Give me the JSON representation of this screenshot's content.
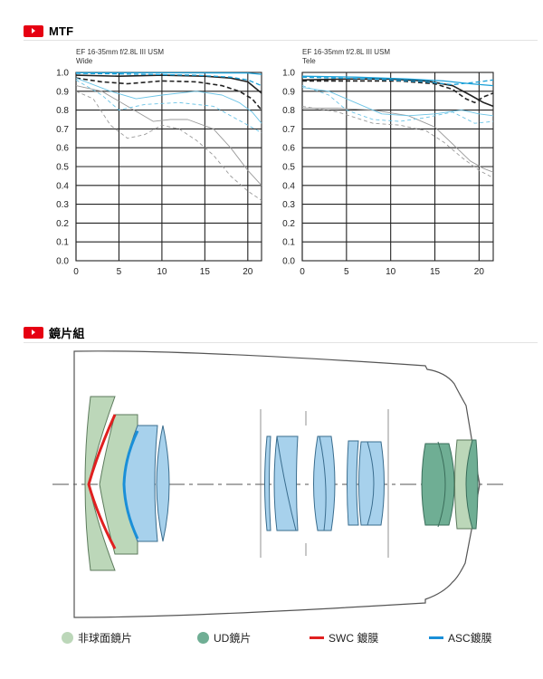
{
  "sections": {
    "mtf_title": "MTF",
    "elements_title": "鏡片組"
  },
  "colors": {
    "accent_red": "#e60012",
    "mtf_black": "#222222",
    "mtf_blue": "#1aa0d8",
    "mtf_gray": "#9a9a9a",
    "mtf_light_blue": "#6cc4e6",
    "aspherical_fill": "#bcd7b9",
    "ud_fill": "#6fae94",
    "normal_fill": "#a7d1ec",
    "swc": "#e02020",
    "asc": "#1a8fd8"
  },
  "chart_data": [
    {
      "type": "line",
      "title": "EF 16-35mm f/2.8L III USM",
      "subtitle": "Wide",
      "xlim": [
        0,
        21.6
      ],
      "ylim": [
        0,
        1.0
      ],
      "x_ticks": [
        "0",
        "5",
        "10",
        "15",
        "20"
      ],
      "y_ticks": [
        "0.0",
        "0.1",
        "0.2",
        "0.3",
        "0.4",
        "0.5",
        "0.6",
        "0.7",
        "0.8",
        "0.9",
        "1.0"
      ],
      "grid": true,
      "series": [
        {
          "style": "black-solid",
          "points": [
            [
              0,
              0.985
            ],
            [
              5,
              0.98
            ],
            [
              10,
              0.985
            ],
            [
              15,
              0.98
            ],
            [
              18,
              0.97
            ],
            [
              20,
              0.95
            ],
            [
              21.6,
              0.89
            ]
          ]
        },
        {
          "style": "black-dashed",
          "points": [
            [
              0,
              0.97
            ],
            [
              3,
              0.95
            ],
            [
              6,
              0.94
            ],
            [
              10,
              0.955
            ],
            [
              14,
              0.95
            ],
            [
              17,
              0.93
            ],
            [
              19,
              0.9
            ],
            [
              20.5,
              0.86
            ],
            [
              21.6,
              0.8
            ]
          ]
        },
        {
          "style": "blue-solid",
          "points": [
            [
              0,
              0.998
            ],
            [
              10,
              0.998
            ],
            [
              20,
              0.997
            ],
            [
              21.6,
              0.99
            ]
          ]
        },
        {
          "style": "blue-dashed",
          "points": [
            [
              0,
              0.995
            ],
            [
              8,
              0.99
            ],
            [
              14,
              0.985
            ],
            [
              18,
              0.975
            ],
            [
              20,
              0.96
            ],
            [
              21.6,
              0.93
            ]
          ]
        },
        {
          "style": "gray-solid",
          "points": [
            [
              0,
              0.93
            ],
            [
              3,
              0.9
            ],
            [
              6,
              0.82
            ],
            [
              9,
              0.74
            ],
            [
              11,
              0.75
            ],
            [
              13,
              0.75
            ],
            [
              16,
              0.7
            ],
            [
              18,
              0.6
            ],
            [
              20,
              0.48
            ],
            [
              21.6,
              0.4
            ]
          ]
        },
        {
          "style": "gray-dashed",
          "points": [
            [
              0,
              0.9
            ],
            [
              2,
              0.86
            ],
            [
              4,
              0.72
            ],
            [
              6,
              0.65
            ],
            [
              8,
              0.67
            ],
            [
              10,
              0.72
            ],
            [
              12,
              0.7
            ],
            [
              14,
              0.64
            ],
            [
              16,
              0.56
            ],
            [
              18,
              0.45
            ],
            [
              20,
              0.37
            ],
            [
              21.6,
              0.32
            ]
          ]
        },
        {
          "style": "lightblue-solid",
          "points": [
            [
              0,
              0.97
            ],
            [
              4,
              0.9
            ],
            [
              7,
              0.86
            ],
            [
              10,
              0.88
            ],
            [
              14,
              0.9
            ],
            [
              17,
              0.88
            ],
            [
              19,
              0.84
            ],
            [
              20.5,
              0.79
            ],
            [
              21.6,
              0.73
            ]
          ]
        },
        {
          "style": "lightblue-dashed",
          "points": [
            [
              0,
              0.96
            ],
            [
              3,
              0.88
            ],
            [
              5,
              0.8
            ],
            [
              8,
              0.83
            ],
            [
              12,
              0.84
            ],
            [
              16,
              0.82
            ],
            [
              18,
              0.77
            ],
            [
              20,
              0.72
            ],
            [
              21.6,
              0.68
            ]
          ]
        }
      ]
    },
    {
      "type": "line",
      "title": "EF 16-35mm f/2.8L III USM",
      "subtitle": "Tele",
      "xlim": [
        0,
        21.6
      ],
      "ylim": [
        0,
        1.0
      ],
      "x_ticks": [
        "0",
        "5",
        "10",
        "15",
        "20"
      ],
      "y_ticks": [
        "0.0",
        "0.1",
        "0.2",
        "0.3",
        "0.4",
        "0.5",
        "0.6",
        "0.7",
        "0.8",
        "0.9",
        "1.0"
      ],
      "grid": true,
      "series": [
        {
          "style": "black-solid",
          "points": [
            [
              0,
              0.96
            ],
            [
              5,
              0.965
            ],
            [
              10,
              0.965
            ],
            [
              14,
              0.955
            ],
            [
              17,
              0.93
            ],
            [
              19,
              0.88
            ],
            [
              20.5,
              0.84
            ],
            [
              21.6,
              0.82
            ]
          ]
        },
        {
          "style": "black-dashed",
          "points": [
            [
              0,
              0.955
            ],
            [
              6,
              0.955
            ],
            [
              11,
              0.955
            ],
            [
              15,
              0.94
            ],
            [
              17,
              0.91
            ],
            [
              18.5,
              0.86
            ],
            [
              19.5,
              0.84
            ],
            [
              20.5,
              0.87
            ],
            [
              21.6,
              0.89
            ]
          ]
        },
        {
          "style": "blue-solid",
          "points": [
            [
              0,
              0.98
            ],
            [
              6,
              0.975
            ],
            [
              12,
              0.965
            ],
            [
              16,
              0.955
            ],
            [
              19,
              0.94
            ],
            [
              21.6,
              0.93
            ]
          ]
        },
        {
          "style": "blue-dashed",
          "points": [
            [
              0,
              0.975
            ],
            [
              8,
              0.965
            ],
            [
              14,
              0.95
            ],
            [
              17,
              0.935
            ],
            [
              20,
              0.95
            ],
            [
              21.6,
              0.96
            ]
          ]
        },
        {
          "style": "gray-solid",
          "points": [
            [
              0,
              0.81
            ],
            [
              4,
              0.81
            ],
            [
              8,
              0.8
            ],
            [
              12,
              0.77
            ],
            [
              15,
              0.71
            ],
            [
              17,
              0.62
            ],
            [
              19,
              0.53
            ],
            [
              20.5,
              0.49
            ],
            [
              21.6,
              0.47
            ]
          ]
        },
        {
          "style": "gray-dashed",
          "points": [
            [
              0,
              0.82
            ],
            [
              4,
              0.79
            ],
            [
              8,
              0.73
            ],
            [
              11,
              0.72
            ],
            [
              14,
              0.69
            ],
            [
              16,
              0.63
            ],
            [
              18,
              0.55
            ],
            [
              20,
              0.48
            ],
            [
              21.6,
              0.44
            ]
          ]
        },
        {
          "style": "lightblue-solid",
          "points": [
            [
              0,
              0.92
            ],
            [
              3,
              0.9
            ],
            [
              6,
              0.84
            ],
            [
              9,
              0.78
            ],
            [
              12,
              0.77
            ],
            [
              15,
              0.78
            ],
            [
              18,
              0.8
            ],
            [
              20,
              0.78
            ],
            [
              21.6,
              0.77
            ]
          ]
        },
        {
          "style": "lightblue-dashed",
          "points": [
            [
              0,
              0.93
            ],
            [
              3,
              0.88
            ],
            [
              5,
              0.8
            ],
            [
              8,
              0.75
            ],
            [
              11,
              0.74
            ],
            [
              14,
              0.76
            ],
            [
              17,
              0.79
            ],
            [
              19.5,
              0.73
            ],
            [
              21.6,
              0.74
            ]
          ]
        }
      ]
    }
  ],
  "legend": [
    {
      "type": "dot",
      "color": "#bcd7b9",
      "label": "非球面鏡片"
    },
    {
      "type": "dot",
      "color": "#6fae94",
      "label": "UD鏡片"
    },
    {
      "type": "line",
      "color": "#e02020",
      "label": "SWC 鍍膜"
    },
    {
      "type": "line",
      "color": "#1a8fd8",
      "label": "ASC鍍膜"
    }
  ]
}
